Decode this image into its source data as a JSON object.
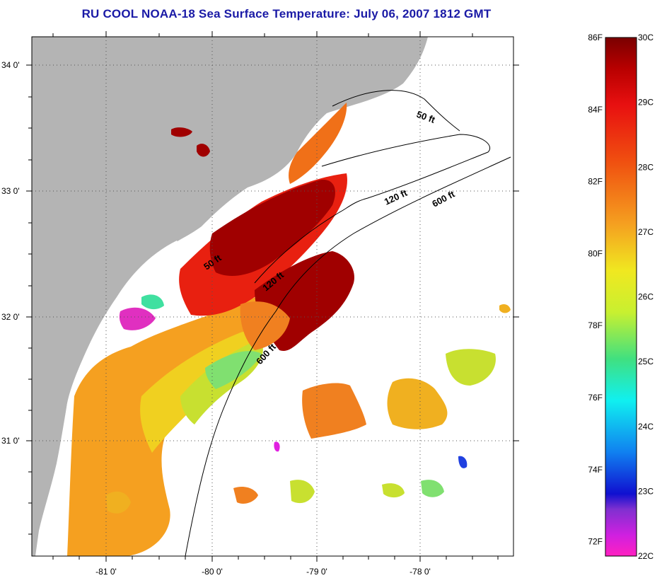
{
  "title": "RU COOL  NOAA-18  Sea Surface Temperature:  July 06, 2007 1812 GMT",
  "map": {
    "lat_labels": [
      {
        "text": "34 0'",
        "lat": 34.0
      },
      {
        "text": "33 0'",
        "lat": 33.0
      },
      {
        "text": "32 0'",
        "lat": 32.0
      },
      {
        "text": "31 0'",
        "lat": 31.0
      }
    ],
    "lon_labels": [
      {
        "text": "-81 0'",
        "lon": -81.0
      },
      {
        "text": "-80 0'",
        "lon": -80.0
      },
      {
        "text": "-79 0'",
        "lon": -79.0
      },
      {
        "text": "-78 0'",
        "lon": -78.0
      }
    ],
    "contour_labels": [
      "50 ft",
      "120 ft",
      "600 ft",
      "50 ft",
      "120 ft",
      "600 ft"
    ],
    "colors": {
      "land": "#b4b4b4",
      "grid": "#555555"
    }
  },
  "colorbar": {
    "fahrenheit_labels": [
      "86F",
      "84F",
      "82F",
      "80F",
      "78F",
      "76F",
      "74F",
      "72F"
    ],
    "celsius_labels": [
      "30C",
      "29C",
      "28C",
      "27C",
      "26C",
      "25C",
      "24C",
      "23C",
      "22C"
    ],
    "range_c": [
      22,
      30
    ]
  }
}
